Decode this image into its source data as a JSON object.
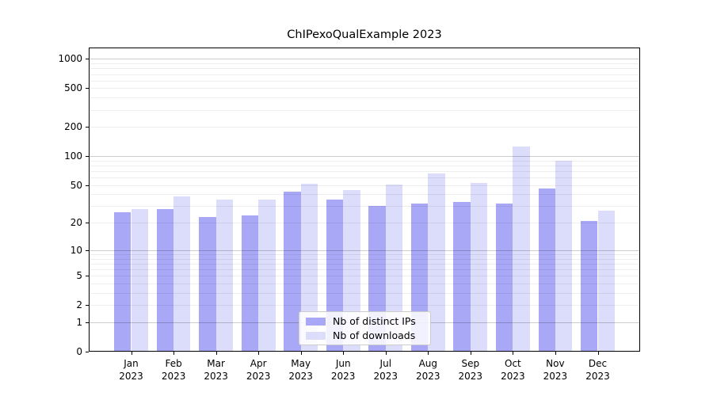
{
  "chart_data": {
    "type": "bar",
    "title": "ChIPexoQualExample 2023",
    "categories": [
      "Jan",
      "Feb",
      "Mar",
      "Apr",
      "May",
      "Jun",
      "Jul",
      "Aug",
      "Sep",
      "Oct",
      "Nov",
      "Dec"
    ],
    "category_year": "2023",
    "series": [
      {
        "name": "Nb of distinct IPs",
        "color": "#a8a8f6",
        "values": [
          26,
          28,
          23,
          24,
          43,
          35,
          30,
          32,
          33,
          32,
          46,
          21
        ]
      },
      {
        "name": "Nb of downloads",
        "color": "#dcdcfb",
        "values": [
          28,
          38,
          35,
          35,
          52,
          44,
          51,
          66,
          53,
          125,
          90,
          27
        ]
      }
    ],
    "yscale": "log1p",
    "ylim": [
      0,
      1000
    ],
    "yticks": [
      0,
      1,
      2,
      5,
      10,
      20,
      50,
      100,
      200,
      500,
      1000
    ],
    "grid": {
      "major": [
        1,
        10,
        100,
        1000
      ],
      "minor": [
        2,
        3,
        4,
        5,
        6,
        7,
        8,
        9,
        20,
        30,
        40,
        50,
        60,
        70,
        80,
        90,
        200,
        300,
        400,
        500,
        600,
        700,
        800,
        900
      ]
    },
    "legend": {
      "position": "bottom-center-inside",
      "items": [
        "Nb of distinct IPs",
        "Nb of downloads"
      ]
    }
  },
  "colors": {
    "bar_distinct_ips": "#a8a8f6",
    "bar_downloads": "#dcdcfb",
    "major_grid": "rgba(0,0,0,0.20)",
    "minor_grid": "rgba(0,0,0,0.065)",
    "axis": "#000000",
    "background": "#ffffff"
  }
}
